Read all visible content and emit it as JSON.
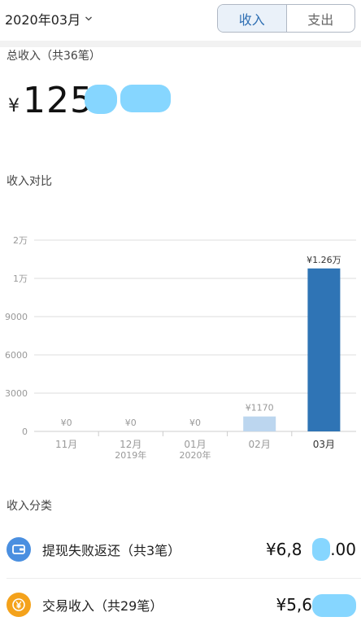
{
  "header": {
    "month_label": "2020年03月",
    "tabs": [
      {
        "label": "收入",
        "active": true
      },
      {
        "label": "支出",
        "active": false
      }
    ]
  },
  "summary": {
    "total_label": "总收入（共36笔）",
    "currency": "¥",
    "amount_visible": "125"
  },
  "comparison_title": "收入对比",
  "category_title": "收入分类",
  "chart_data": {
    "type": "bar",
    "categories": [
      "11月",
      "12月",
      "01月",
      "02月",
      "03月"
    ],
    "category_sublabels": [
      "",
      "2019年",
      "2020年",
      "",
      ""
    ],
    "values": [
      0,
      0,
      0,
      1170,
      12600
    ],
    "data_labels": [
      "¥0",
      "¥0",
      "¥0",
      "¥1170",
      "¥1.26万"
    ],
    "y_ticks": [
      0,
      3000,
      6000,
      9000,
      10000,
      20000
    ],
    "y_tick_labels": [
      "0",
      "3000",
      "6000",
      "9000",
      "1万",
      "2万"
    ],
    "highlight_index": 4,
    "colors": {
      "highlight": "#2f74b5",
      "normal": "#bcd6ef",
      "grid": "#dddddd"
    }
  },
  "categories": [
    {
      "name": "提现失败返还（共3笔）",
      "amount": "¥6,8",
      "amount_tail": "4.00",
      "icon": "wallet-icon",
      "color": "#4a8fe0"
    },
    {
      "name": "交易收入（共29笔）",
      "amount": "¥5,6",
      "amount_tail": "",
      "icon": "yen-coin-icon",
      "color": "#f4a21b"
    }
  ]
}
